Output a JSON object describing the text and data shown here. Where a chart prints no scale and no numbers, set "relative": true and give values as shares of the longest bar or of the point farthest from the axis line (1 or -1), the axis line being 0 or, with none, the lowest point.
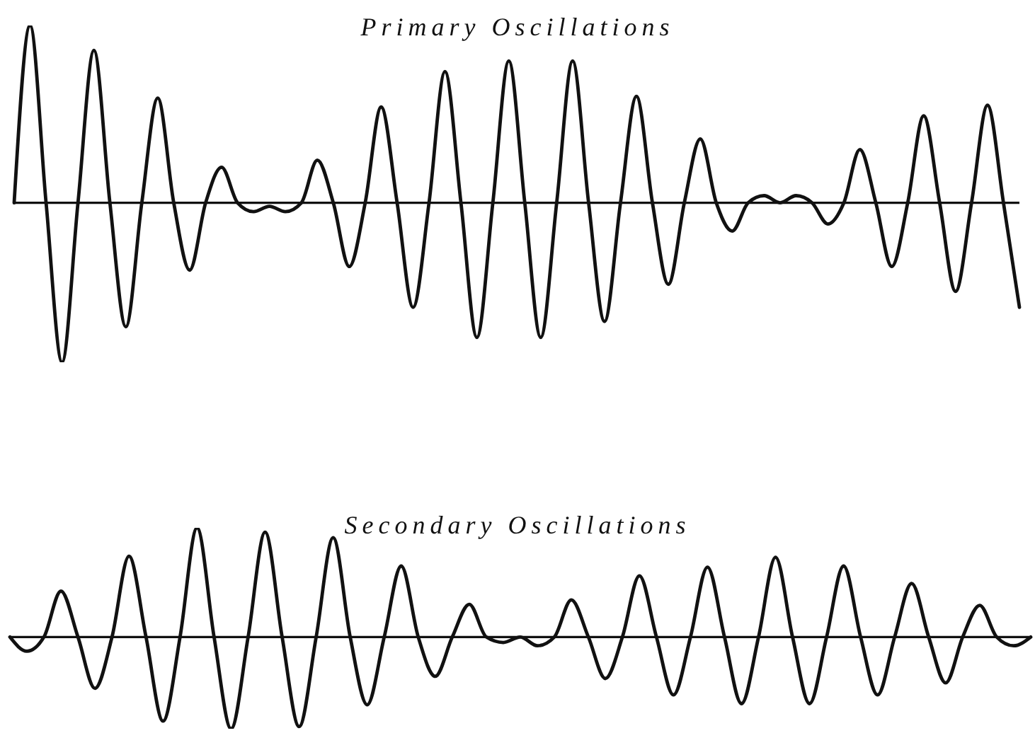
{
  "chart_data": [
    {
      "type": "line",
      "title": "Primary Oscillations",
      "relative": true,
      "marker": "none",
      "categories": [
        null,
        null,
        null,
        null,
        null,
        null,
        null,
        null,
        null,
        null,
        null,
        null,
        null,
        null,
        null,
        null,
        null,
        null,
        null,
        null,
        null,
        null,
        null,
        null,
        null,
        null,
        null,
        null,
        null,
        null,
        null,
        null,
        null,
        null,
        null,
        null,
        null,
        null,
        null,
        null,
        null,
        null,
        null,
        null,
        null,
        null,
        null,
        null,
        null,
        null,
        null,
        null,
        null,
        null,
        null,
        null,
        null,
        null,
        null,
        null,
        null,
        null,
        null,
        null
      ],
      "series": [
        {
          "color": "#111111",
          "values": [
            0,
            1.0,
            0,
            -0.9,
            0,
            0.86,
            0,
            -0.7,
            0,
            0.59,
            0,
            -0.38,
            0,
            0.2,
            0,
            -0.05,
            -0.02,
            -0.05,
            0,
            0.24,
            0,
            -0.36,
            0,
            0.54,
            0,
            -0.59,
            0,
            0.74,
            0,
            -0.76,
            0,
            0.8,
            0,
            -0.76,
            0,
            0.8,
            0,
            -0.67,
            0,
            0.6,
            0,
            -0.46,
            0,
            0.36,
            0,
            -0.16,
            0,
            0.04,
            0,
            0.04,
            0,
            -0.12,
            0,
            0.3,
            0,
            -0.36,
            0,
            0.49,
            0,
            -0.5,
            0,
            0.55,
            0,
            -0.59
          ]
        }
      ]
    },
    {
      "type": "line",
      "title": "Secondary Oscillations",
      "relative": true,
      "marker": "none",
      "categories": [
        null,
        null,
        null,
        null,
        null,
        null,
        null,
        null,
        null,
        null,
        null,
        null,
        null,
        null,
        null,
        null,
        null,
        null,
        null,
        null,
        null,
        null,
        null,
        null,
        null,
        null,
        null,
        null,
        null,
        null,
        null,
        null,
        null,
        null,
        null,
        null,
        null,
        null,
        null,
        null,
        null,
        null,
        null,
        null,
        null,
        null,
        null,
        null,
        null,
        null,
        null,
        null,
        null,
        null,
        null,
        null,
        null,
        null,
        null,
        null,
        null
      ],
      "series": [
        {
          "color": "#111111",
          "values": [
            0,
            -0.13,
            0,
            0.42,
            0,
            -0.47,
            0,
            0.74,
            0,
            -0.77,
            0,
            1.0,
            0,
            -0.84,
            0,
            0.96,
            0,
            -0.82,
            0,
            0.91,
            0,
            -0.62,
            0,
            0.65,
            0,
            -0.36,
            0,
            0.3,
            0,
            -0.05,
            0,
            -0.08,
            0,
            0.34,
            0,
            -0.38,
            0,
            0.56,
            0,
            -0.53,
            0,
            0.64,
            0,
            -0.61,
            0,
            0.73,
            0,
            -0.61,
            0,
            0.65,
            0,
            -0.53,
            0,
            0.49,
            0,
            -0.42,
            0,
            0.29,
            0,
            -0.08,
            0
          ]
        }
      ]
    }
  ]
}
